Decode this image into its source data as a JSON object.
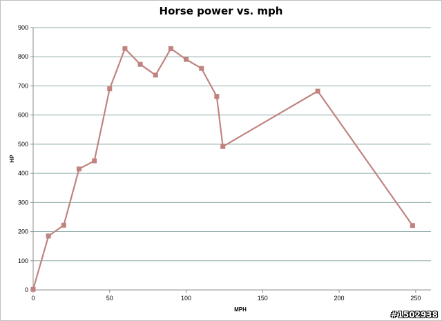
{
  "watermark": "#1502938",
  "chart_data": {
    "type": "line",
    "title": "Horse power vs. mph",
    "xlabel": "MPH",
    "ylabel": "HP",
    "xlim": [
      0,
      260
    ],
    "ylim": [
      0,
      900
    ],
    "xticks": [
      0,
      50,
      100,
      150,
      200,
      250
    ],
    "yticks": [
      0,
      100,
      200,
      300,
      400,
      500,
      600,
      700,
      800,
      900
    ],
    "grid": "horizontal",
    "legend": "none",
    "series": [
      {
        "color": "#c0837f",
        "marker": "square",
        "x": [
          0,
          10,
          20,
          30,
          40,
          50,
          60,
          70,
          80,
          90,
          100,
          110,
          120,
          124,
          186,
          248
        ],
        "y": [
          2,
          185,
          222,
          415,
          443,
          690,
          828,
          774,
          737,
          828,
          791,
          760,
          664,
          492,
          682,
          221
        ]
      }
    ],
    "colors": {
      "grid": "#8aa8a8",
      "axis": "#8c8c8c"
    }
  }
}
